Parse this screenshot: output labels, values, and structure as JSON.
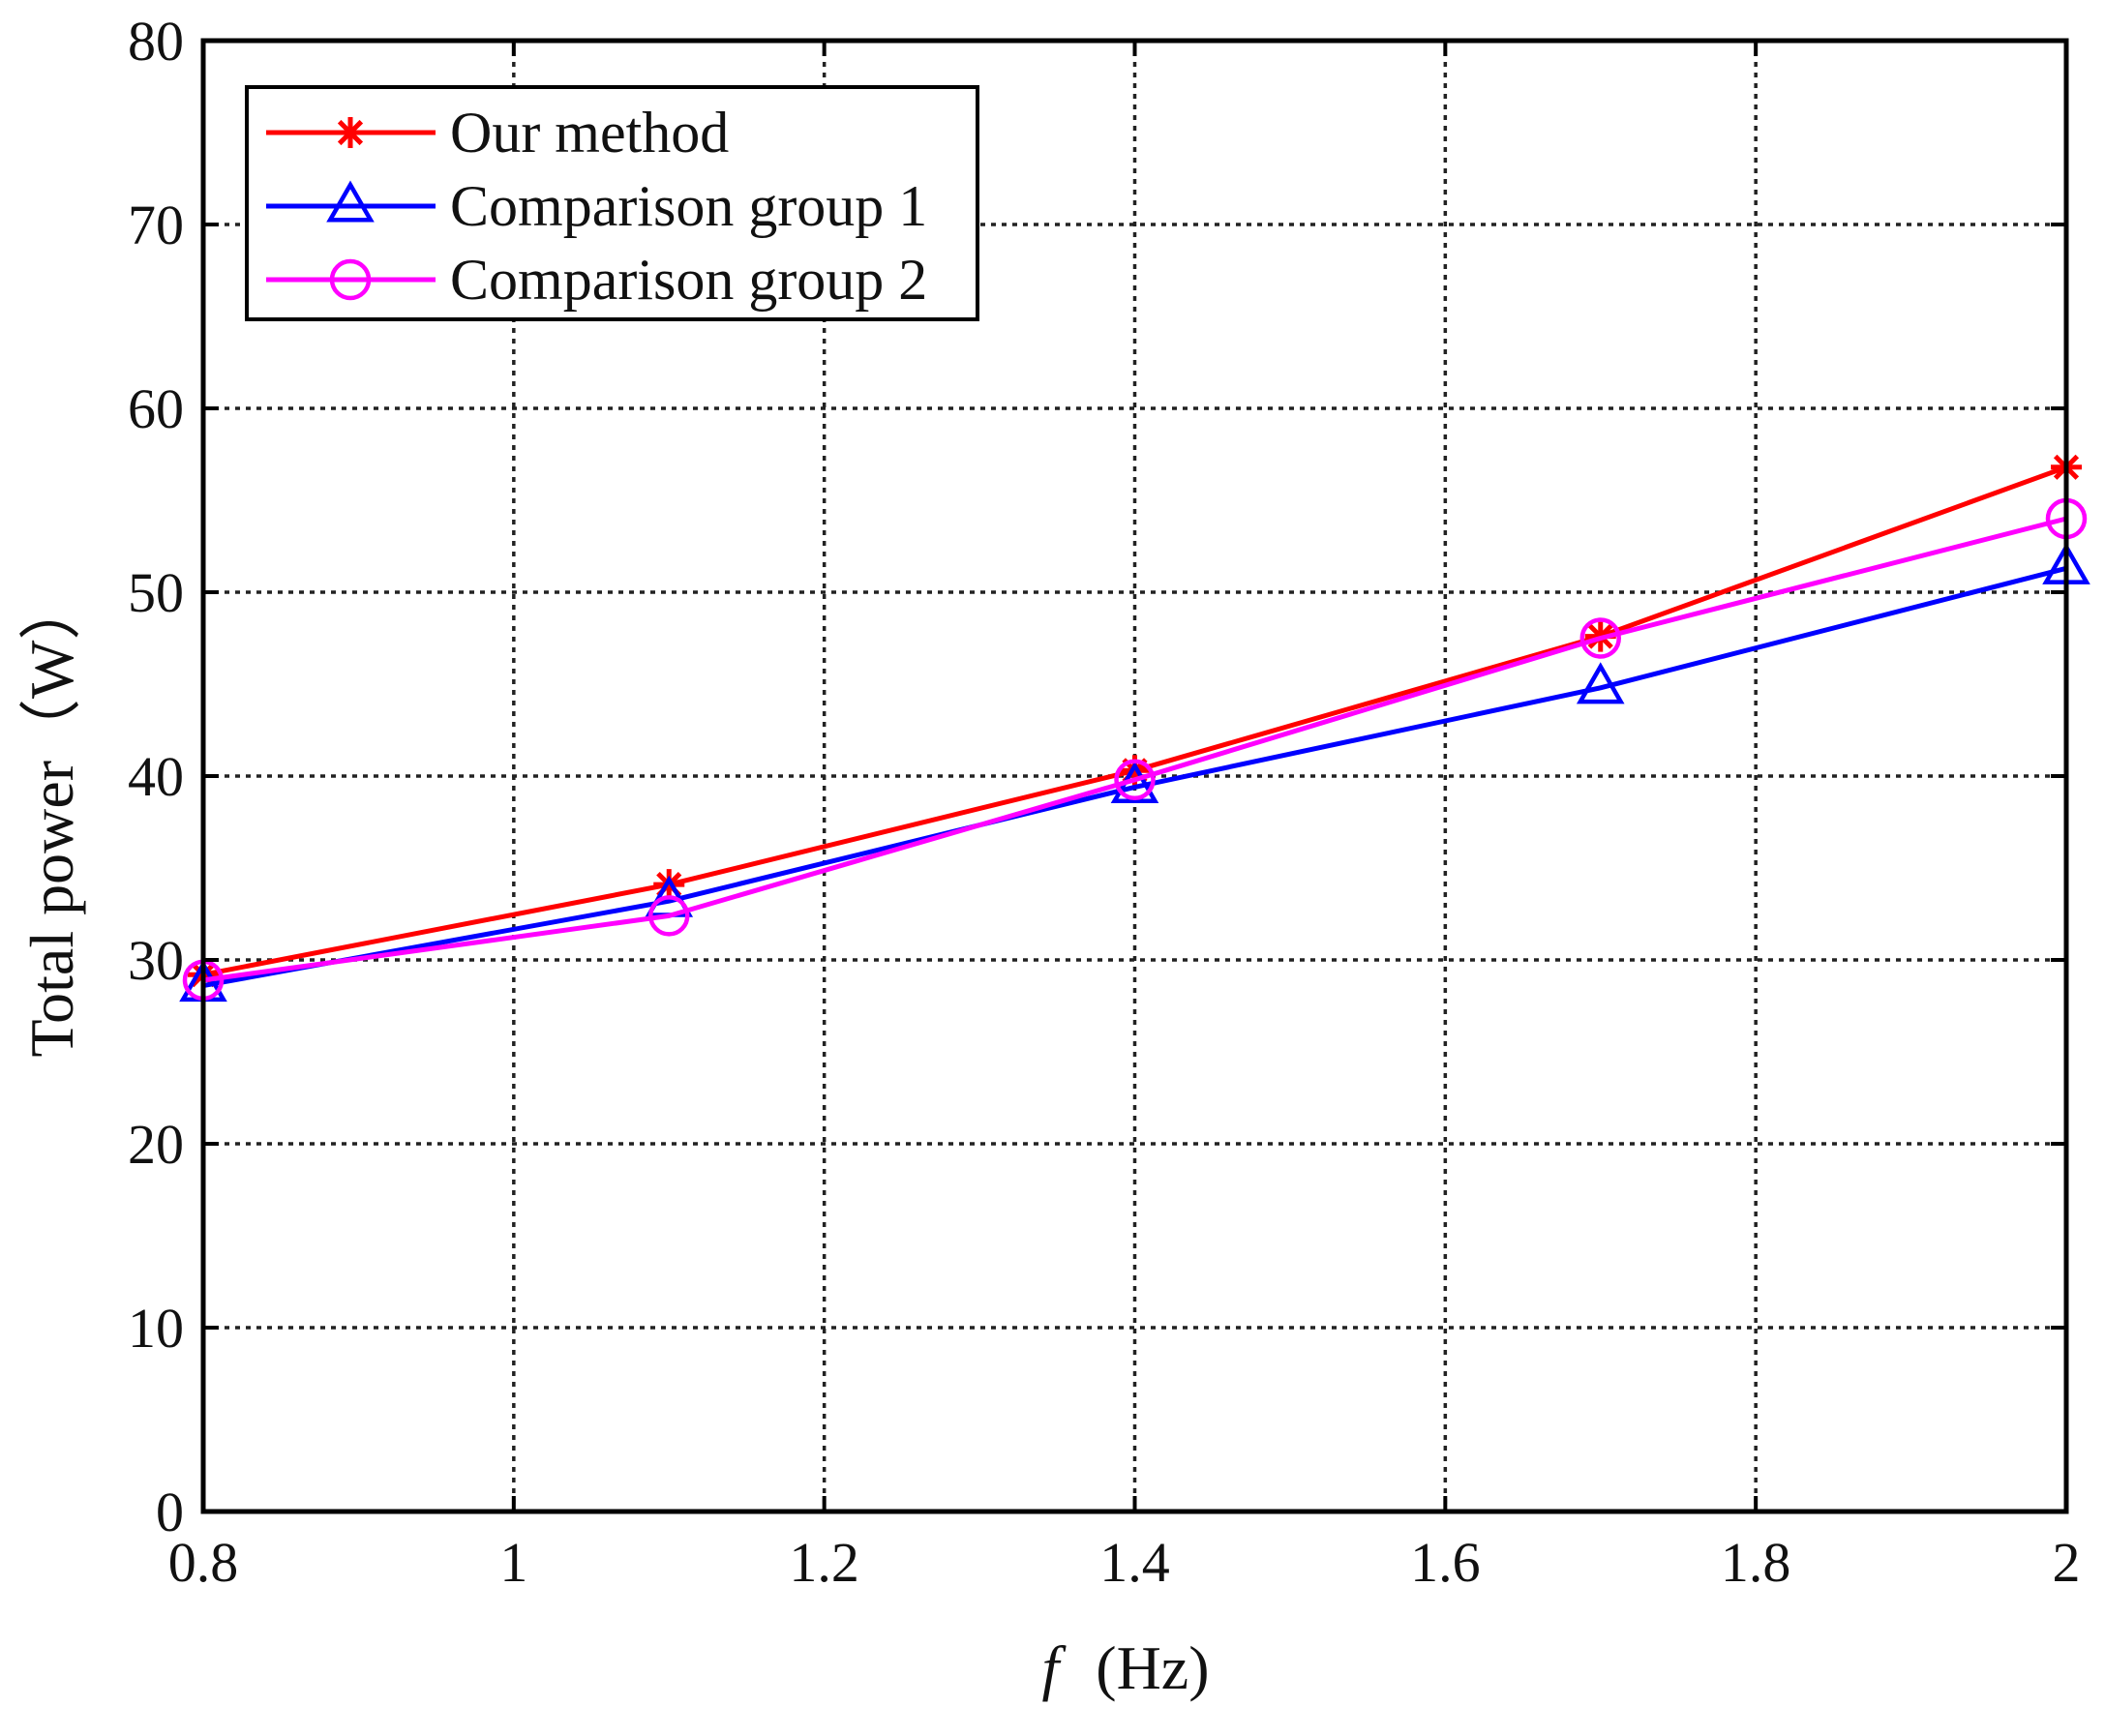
{
  "chart_data": {
    "type": "line",
    "title": "",
    "xlabel_italic": "f",
    "xlabel_unit": "(Hz)",
    "ylabel": "Total power（W）",
    "xlim": [
      0.8,
      2
    ],
    "ylim": [
      0,
      80
    ],
    "xticks": [
      0.8,
      1,
      1.2,
      1.4,
      1.6,
      1.8,
      2
    ],
    "xtick_labels": [
      "0.8",
      "1",
      "1.2",
      "1.4",
      "1.6",
      "1.8",
      "2"
    ],
    "yticks": [
      0,
      10,
      20,
      30,
      40,
      50,
      60,
      70,
      80
    ],
    "ytick_labels": [
      "0",
      "10",
      "20",
      "30",
      "40",
      "50",
      "60",
      "70",
      "80"
    ],
    "grid": true,
    "legend_position": "top-left",
    "x": [
      0.8,
      1.1,
      1.4,
      1.7,
      2.0
    ],
    "series": [
      {
        "name": "Our method",
        "color": "#ff0000",
        "marker": "asterisk",
        "values": [
          29.2,
          34.1,
          40.3,
          47.6,
          56.8
        ]
      },
      {
        "name": "Comparison group 1",
        "color": "#0000ff",
        "marker": "triangle",
        "values": [
          28.6,
          33.2,
          39.4,
          44.8,
          51.3
        ]
      },
      {
        "name": "Comparison group 2",
        "color": "#ff00ff",
        "marker": "circle",
        "values": [
          28.9,
          32.4,
          39.8,
          47.5,
          54.0
        ]
      }
    ]
  }
}
